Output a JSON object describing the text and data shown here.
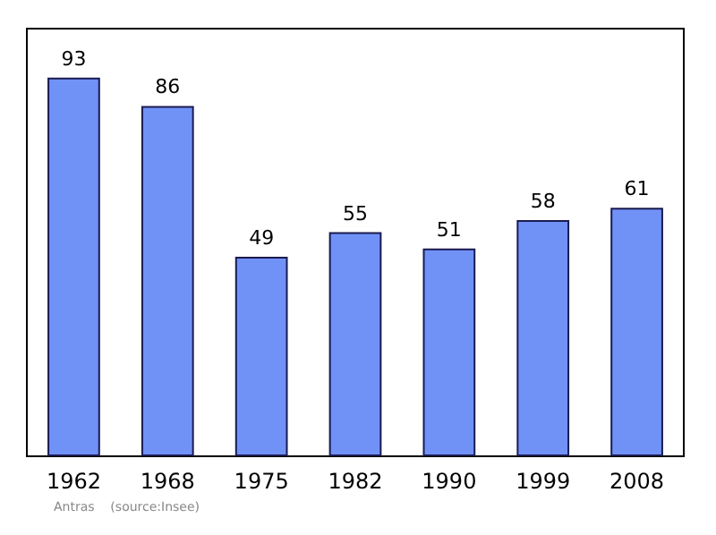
{
  "chart_data": {
    "type": "bar",
    "categories": [
      "1962",
      "1968",
      "1975",
      "1982",
      "1990",
      "1999",
      "2008"
    ],
    "values": [
      93,
      86,
      49,
      55,
      51,
      58,
      61
    ],
    "color": "#7092f7",
    "ylim": [
      0,
      105
    ],
    "data_labels": true,
    "tick_labels": "x",
    "grid": false,
    "annotations": [
      "Antras    (source:Insee)"
    ]
  }
}
